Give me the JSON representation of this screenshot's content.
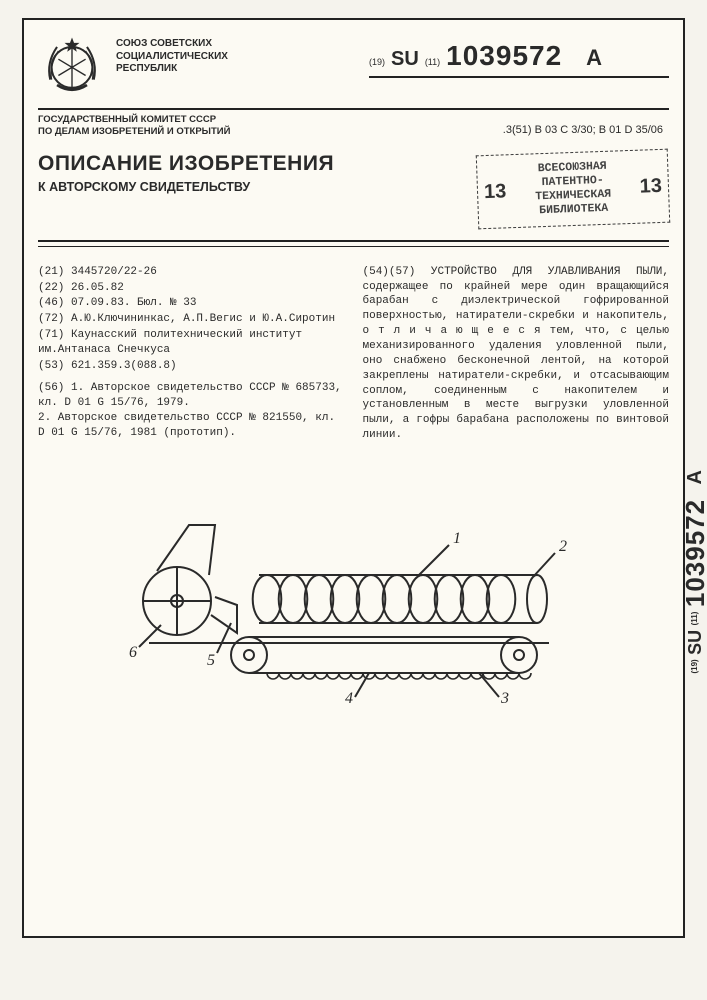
{
  "header": {
    "union_title": "СОЮЗ СОВЕТСКИХ\nСОЦИАЛИСТИЧЕСКИХ\nРЕСПУБЛИК",
    "committee": "ГОСУДАРСТВЕННЫЙ КОМИТЕТ СССР\nПО ДЕЛАМ ИЗОБРЕТЕНИЙ И ОТКРЫТИЙ",
    "pub_prefix_19": "(19)",
    "country_code": "SU",
    "pub_prefix_11": "(11)",
    "pub_number": "1039572",
    "pub_suffix": "A",
    "ipc_prefix": ".3(51)",
    "ipc": "B 03 C 3/30; B 01 D 35/06"
  },
  "title_block": {
    "main": "ОПИСАНИЕ ИЗОБРЕТЕНИЯ",
    "sub": "К АВТОРСКОМУ СВИДЕТЕЛЬСТВУ"
  },
  "stamp": {
    "line1": "ВСЕСОЮЗНАЯ",
    "line2": "ПАТЕНТНО-",
    "line3": "ТЕХНИЧЕСКАЯ",
    "line4": "БИБЛИОТЕКА",
    "num": "13"
  },
  "biblio": {
    "l21": "(21) 3445720/22-26",
    "l22": "(22) 26.05.82",
    "l46": "(46) 07.09.83. Бюл. № 33",
    "l72": "(72) А.Ю.Ключининкас, А.П.Вегис и Ю.А.Сиротин",
    "l71": "(71) Каунасский политехнический институт им.Антанаса Снечкуса",
    "l53": "(53) 621.359.3(088.8)",
    "l56a": "(56) 1. Авторское свидетельство СССР № 685733, кл. D 01 G 15/76, 1979.",
    "l56b": "2. Авторское свидетельство СССР № 821550, кл. D 01 G 15/76, 1981 (прототип)."
  },
  "abstract": {
    "label": "(54)(57)",
    "title_caps": "УСТРОЙСТВО ДЛЯ УЛАВЛИВАНИЯ ПЫЛИ,",
    "body": "содержащее по крайней мере один вращающийся барабан с диэлектрической гофрированной поверхностью, натиратели-скребки и накопитель, о т л и ч а ю щ е е с я  тем, что, с целью механизированного удаления уловленной пыли, оно снабжено бесконечной лентой, на которой закреплены натиратели-скребки, и отсасывающим соплом, соединенным с накопителем и установленным в месте выгрузки уловленной пыли, а гофры барабана расположены по винтовой линии."
  },
  "figure": {
    "callouts": [
      "1",
      "2",
      "3",
      "4",
      "5",
      "6"
    ],
    "stroke": "#2a2a2a",
    "stroke_width": 2,
    "coil_turns": 10
  },
  "side": {
    "prefix_19": "(19)",
    "country": "SU",
    "prefix_11": "(11)",
    "number": "1039572",
    "suffix": "A"
  }
}
